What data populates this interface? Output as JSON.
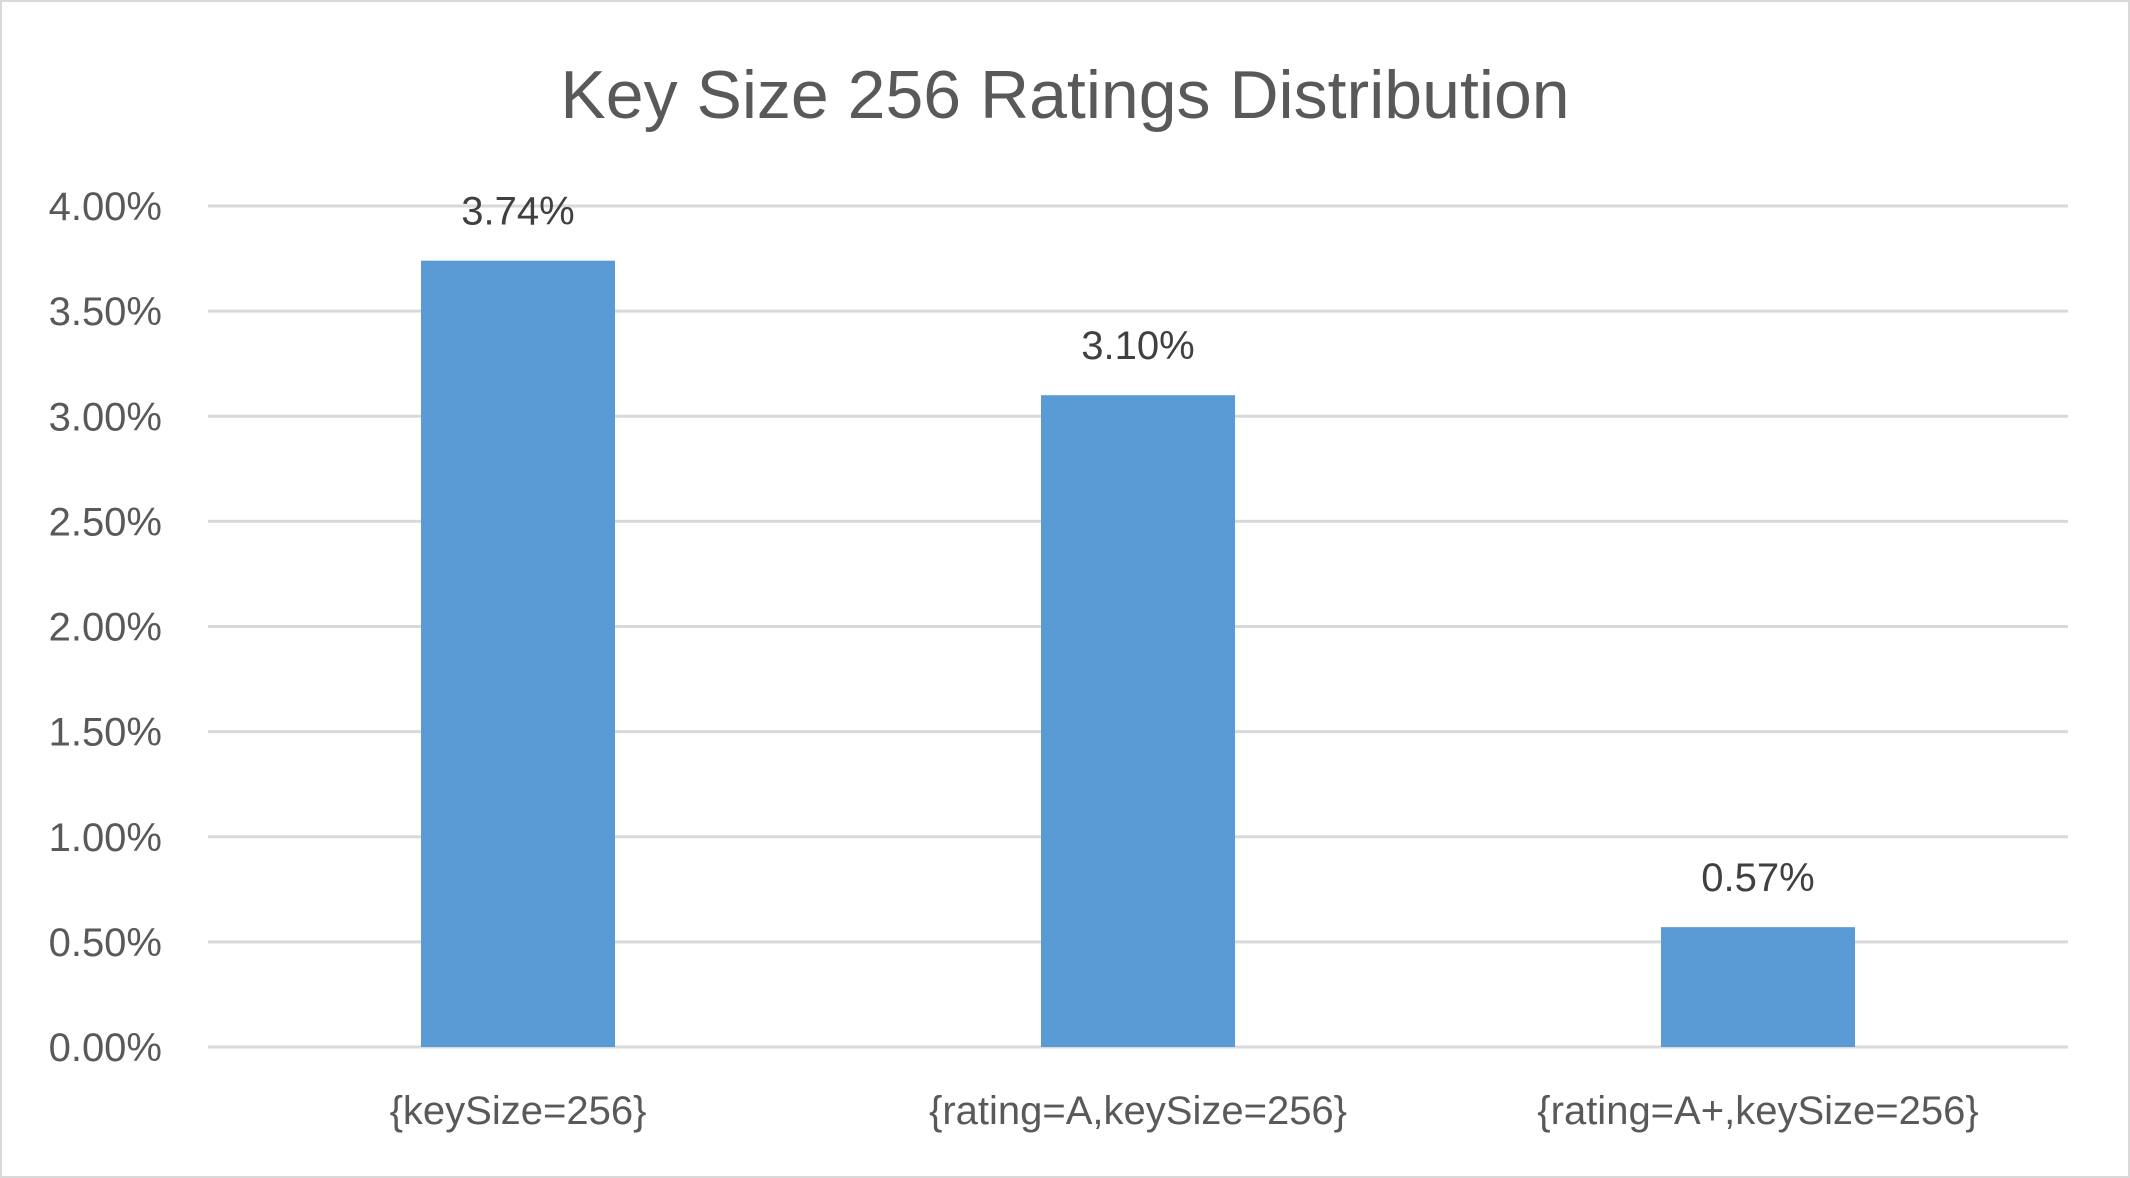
{
  "chart_data": {
    "type": "bar",
    "title": "Key Size 256 Ratings Distribution",
    "categories": [
      "{keySize=256}",
      "{rating=A,keySize=256}",
      "{rating=A+,keySize=256}"
    ],
    "values": [
      3.74,
      3.1,
      0.57
    ],
    "value_labels": [
      "3.74%",
      "3.10%",
      "0.57%"
    ],
    "y_ticks": [
      0,
      0.5,
      1.0,
      1.5,
      2.0,
      2.5,
      3.0,
      3.5,
      4.0
    ],
    "y_tick_labels": [
      "0.00%",
      "0.50%",
      "1.00%",
      "1.50%",
      "2.00%",
      "2.50%",
      "3.00%",
      "3.50%",
      "4.00%"
    ],
    "ylim": [
      0,
      4
    ],
    "xlabel": "",
    "ylabel": "",
    "grid": true,
    "legend": "none",
    "bar_color": "#5b9bd5"
  }
}
